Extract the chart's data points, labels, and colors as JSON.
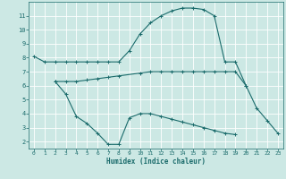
{
  "xlabel": "Humidex (Indice chaleur)",
  "background_color": "#cce8e4",
  "grid_color": "#ffffff",
  "line_color": "#1a6b6b",
  "xlim": [
    -0.5,
    23.5
  ],
  "ylim": [
    1.5,
    12.0
  ],
  "xticks": [
    0,
    1,
    2,
    3,
    4,
    5,
    6,
    7,
    8,
    9,
    10,
    11,
    12,
    13,
    14,
    15,
    16,
    17,
    18,
    19,
    20,
    21,
    22,
    23
  ],
  "yticks": [
    2,
    3,
    4,
    5,
    6,
    7,
    8,
    9,
    10,
    11
  ],
  "line1_x": [
    0,
    1,
    2,
    3,
    4,
    5,
    6,
    7,
    8,
    9,
    10,
    11,
    12,
    13,
    14,
    15,
    16,
    17,
    18,
    19,
    20,
    21,
    22,
    23
  ],
  "line1_y": [
    8.1,
    7.7,
    7.7,
    7.7,
    7.7,
    7.7,
    7.7,
    7.7,
    7.7,
    8.5,
    9.7,
    10.5,
    11.0,
    11.35,
    11.55,
    11.55,
    11.45,
    11.0,
    7.7,
    7.7,
    6.0,
    4.4,
    3.5,
    2.6
  ],
  "line2_x": [
    2,
    3,
    4,
    5,
    6,
    7,
    8,
    10,
    11,
    12,
    13,
    14,
    15,
    16,
    17,
    18,
    19,
    20
  ],
  "line2_y": [
    6.3,
    6.3,
    6.3,
    6.4,
    6.5,
    6.6,
    6.7,
    6.9,
    7.0,
    7.0,
    7.0,
    7.0,
    7.0,
    7.0,
    7.0,
    7.0,
    7.0,
    6.0
  ],
  "line3_x": [
    2,
    3,
    4,
    5,
    6,
    7,
    8,
    9,
    10,
    11,
    12,
    13,
    14,
    15,
    16,
    17,
    18,
    19
  ],
  "line3_y": [
    6.3,
    5.4,
    3.8,
    3.3,
    2.6,
    1.8,
    1.8,
    3.7,
    4.0,
    4.0,
    3.8,
    3.6,
    3.4,
    3.2,
    3.0,
    2.8,
    2.6,
    2.5
  ]
}
